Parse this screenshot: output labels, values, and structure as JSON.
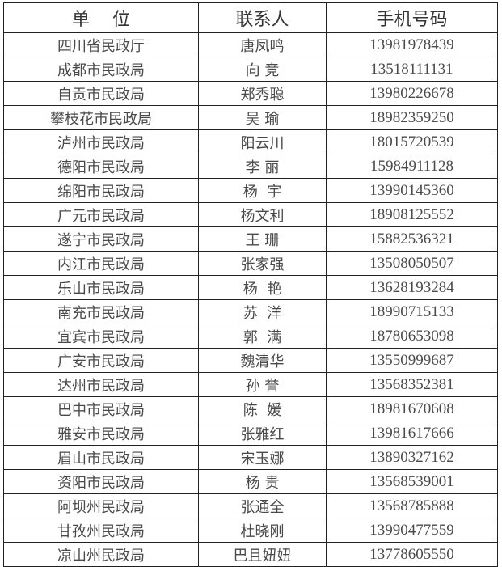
{
  "table": {
    "headers": [
      "单    位",
      "联系人",
      "手机号码"
    ],
    "rows": [
      [
        "四川省民政厅",
        "唐凤鸣",
        "13981978439"
      ],
      [
        "成都市民政局",
        "向 竞",
        "13518111131"
      ],
      [
        "自贡市民政局",
        "郑秀聪",
        "13980226678"
      ],
      [
        "攀枝花市民政局",
        "吴 瑜",
        "18982359250"
      ],
      [
        "泸州市民政局",
        "阳云川",
        "18015720539"
      ],
      [
        "德阳市民政局",
        "李 丽",
        "15984911128"
      ],
      [
        "绵阳市民政局",
        "杨  宇",
        "13990145360"
      ],
      [
        "广元市民政局",
        "杨文利",
        "18908125552"
      ],
      [
        "遂宁市民政局",
        "王 珊",
        "15882536321"
      ],
      [
        "内江市民政局",
        "张家强",
        "13508050507"
      ],
      [
        "乐山市民政局",
        "杨  艳",
        "13628193284"
      ],
      [
        "南充市民政局",
        "苏  洋",
        "18990715133"
      ],
      [
        "宜宾市民政局",
        "郭  满",
        "18780653098"
      ],
      [
        "广安市民政局",
        "魏清华",
        "13550999687"
      ],
      [
        "达州市民政局",
        "孙 誉",
        "13568352381"
      ],
      [
        "巴中市民政局",
        "陈  媛",
        "18981670608"
      ],
      [
        "雅安市民政局",
        "张雅红",
        "13981617666"
      ],
      [
        "眉山市民政局",
        "宋玉娜",
        "13890327162"
      ],
      [
        "资阳市民政局",
        "杨 贵",
        "13568539001"
      ],
      [
        "阿坝州民政局",
        "张通全",
        "13568785888"
      ],
      [
        "甘孜州民政局",
        "杜晓刚",
        "13990477559"
      ],
      [
        "凉山州民政局",
        "巴且妞妞",
        "13778605550"
      ]
    ]
  }
}
